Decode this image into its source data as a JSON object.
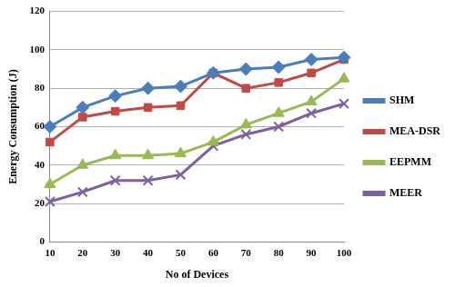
{
  "chart_data": {
    "type": "line",
    "x_label": "No of Devices",
    "y_label": "Energy Consumption (J)",
    "categories": [
      "10",
      "20",
      "30",
      "40",
      "50",
      "60",
      "70",
      "80",
      "90",
      "100"
    ],
    "series": [
      {
        "name": "SHM",
        "color": "#4a7ebb",
        "marker": "diamond",
        "values": [
          60,
          70,
          76,
          80,
          81,
          88,
          90,
          91,
          95,
          96
        ]
      },
      {
        "name": "MEA-DSR",
        "color": "#be4b48",
        "marker": "square",
        "values": [
          52,
          65,
          68,
          70,
          71,
          88,
          80,
          83,
          88,
          95
        ]
      },
      {
        "name": "EEPMM",
        "color": "#98b954",
        "marker": "triangle",
        "values": [
          30,
          40,
          45,
          45,
          46,
          52,
          61,
          67,
          73,
          85
        ]
      },
      {
        "name": "MEER",
        "color": "#7d60a0",
        "marker": "x",
        "values": [
          21,
          26,
          32,
          32,
          35,
          50,
          56,
          60,
          67,
          72
        ]
      }
    ],
    "ylim": [
      0,
      120
    ],
    "yticks": [
      0,
      20,
      40,
      60,
      80,
      100,
      120
    ],
    "grid": "y",
    "legend": "right"
  }
}
